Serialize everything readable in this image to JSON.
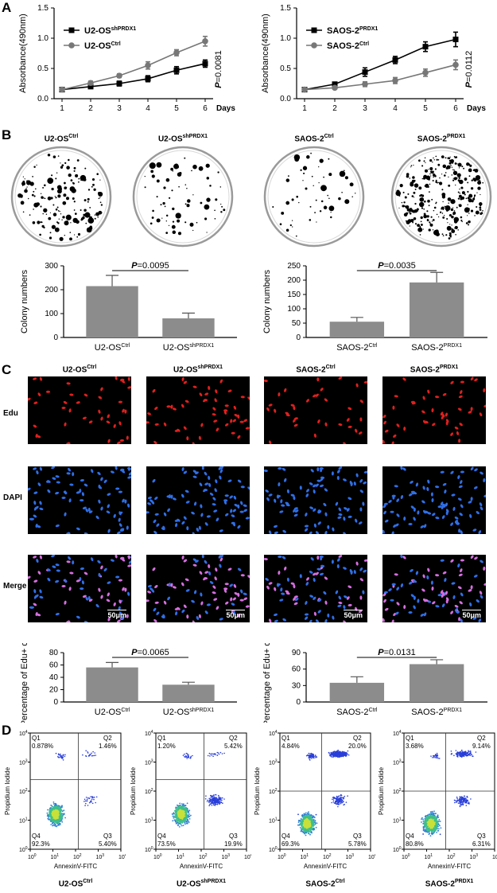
{
  "panels": {
    "a": "A",
    "b": "B",
    "c": "C",
    "d": "D"
  },
  "chart_data": [
    {
      "id": "growth-u2os",
      "type": "line",
      "ylabel": "Absorbance(490nm)",
      "xlabel": "Days",
      "x": [
        1,
        2,
        3,
        4,
        5,
        6
      ],
      "ylim": [
        0,
        1.5
      ],
      "yticks": [
        "0.0",
        "0.5",
        "1.0",
        "1.5"
      ],
      "series": [
        {
          "name": "U2-OS",
          "sup": "shPRDX1",
          "color": "#000000",
          "marker": "square",
          "values": [
            0.15,
            0.2,
            0.25,
            0.33,
            0.47,
            0.58
          ],
          "err": [
            0.02,
            0.03,
            0.04,
            0.05,
            0.06,
            0.06
          ]
        },
        {
          "name": "U2-OS",
          "sup": "Ctrl",
          "color": "#777777",
          "marker": "circle",
          "values": [
            0.15,
            0.26,
            0.38,
            0.55,
            0.76,
            0.95
          ],
          "err": [
            0.02,
            0.03,
            0.03,
            0.06,
            0.05,
            0.08
          ]
        }
      ],
      "pvalue": "=0.0081"
    },
    {
      "id": "growth-saos",
      "type": "line",
      "ylabel": "Absorbance(490nm)",
      "xlabel": "Days",
      "x": [
        1,
        2,
        3,
        4,
        5,
        6
      ],
      "ylim": [
        0,
        1.5
      ],
      "yticks": [
        "0.0",
        "0.5",
        "1.0",
        "1.5"
      ],
      "series": [
        {
          "name": "SAOS-2",
          "sup": "PRDX1",
          "color": "#000000",
          "marker": "square",
          "values": [
            0.15,
            0.24,
            0.44,
            0.64,
            0.86,
            0.98
          ],
          "err": [
            0.02,
            0.03,
            0.07,
            0.06,
            0.08,
            0.12
          ]
        },
        {
          "name": "SAOS-2",
          "sup": "Ctrl",
          "color": "#777777",
          "marker": "circle",
          "values": [
            0.15,
            0.18,
            0.24,
            0.3,
            0.43,
            0.56
          ],
          "err": [
            0.02,
            0.02,
            0.04,
            0.05,
            0.06,
            0.08
          ]
        }
      ],
      "pvalue": "=0.0112"
    },
    {
      "id": "colony-u2os",
      "type": "bar",
      "ylabel": "Colony numbers",
      "categories": [
        {
          "name": "U2-OS",
          "sup": "Ctrl"
        },
        {
          "name": "U2-OS",
          "sup": "shPRDX1"
        }
      ],
      "values": [
        215,
        80
      ],
      "err": [
        45,
        22
      ],
      "ylim": [
        0,
        300
      ],
      "yticks": [
        "0",
        "100",
        "200",
        "300"
      ],
      "pvalue": "=0.0095"
    },
    {
      "id": "colony-saos",
      "type": "bar",
      "ylabel": "Colony numbers",
      "categories": [
        {
          "name": "SAOS-2",
          "sup": "Ctrl"
        },
        {
          "name": "SAOS-2",
          "sup": "PRDX1"
        }
      ],
      "values": [
        55,
        192
      ],
      "err": [
        15,
        35
      ],
      "ylim": [
        0,
        250
      ],
      "yticks": [
        "0",
        "50",
        "100",
        "150",
        "200",
        "250"
      ],
      "pvalue": "=0.0035"
    },
    {
      "id": "edu-u2os",
      "type": "bar",
      "ylabel": "Percentage of Edu+ cells",
      "categories": [
        {
          "name": "U2-OS",
          "sup": "Ctrl"
        },
        {
          "name": "U2-OS",
          "sup": "shPRDX1"
        }
      ],
      "values": [
        56,
        28
      ],
      "err": [
        8,
        4
      ],
      "ylim": [
        0,
        80
      ],
      "yticks": [
        "0",
        "20",
        "40",
        "60",
        "80"
      ],
      "pvalue": "=0.0065"
    },
    {
      "id": "edu-saos",
      "type": "bar",
      "ylabel": "Percentage of Edu+ cells",
      "categories": [
        {
          "name": "SAOS-2",
          "sup": "Ctrl"
        },
        {
          "name": "SAOS-2",
          "sup": "PRDX1"
        }
      ],
      "values": [
        35,
        69
      ],
      "err": [
        11,
        8
      ],
      "ylim": [
        0,
        90
      ],
      "yticks": [
        "0",
        "30",
        "60",
        "90"
      ],
      "pvalue": "=0.0131"
    }
  ],
  "colony_labels": [
    {
      "name": "U2-OS",
      "sup": "Ctrl",
      "density": 170,
      "bigspots": false
    },
    {
      "name": "U2-OS",
      "sup": "shPRDX1",
      "density": 70,
      "bigspots": false
    },
    {
      "name": "SAOS-2",
      "sup": "Ctrl",
      "density": 55,
      "bigspots": false
    },
    {
      "name": "SAOS-2",
      "sup": "PRDX1",
      "density": 320,
      "bigspots": true
    }
  ],
  "microscopy": {
    "columns": [
      {
        "name": "U2-OS",
        "sup": "Ctrl"
      },
      {
        "name": "U2-OS",
        "sup": "shPRDX1"
      },
      {
        "name": "SAOS-2",
        "sup": "Ctrl"
      },
      {
        "name": "SAOS-2",
        "sup": "PRDX1"
      }
    ],
    "rows": [
      "Edu",
      "DAPI",
      "Merge"
    ],
    "scale": "50μm",
    "colors": {
      "edu": "#e0201e",
      "dapi": "#2f6fe8",
      "merge": "#d66ee0"
    }
  },
  "facs": {
    "xlabel": "AnnexinV-FITC",
    "ylabel": "Propidium Iodide",
    "ticks": [
      "10",
      "10",
      "10",
      "10",
      "10"
    ],
    "exps": [
      "0",
      "1",
      "2",
      "3",
      "4"
    ],
    "plots": [
      {
        "name": "U2-OS",
        "sup": "Ctrl",
        "q1": "0.878%",
        "q2": "1.46%",
        "q3": "5.40%",
        "q4": "92.3%"
      },
      {
        "name": "U2-OS",
        "sup": "shPRDX1",
        "q1": "1.20%",
        "q2": "5.42%",
        "q3": "19.9%",
        "q4": "73.5%"
      },
      {
        "name": "SAOS-2",
        "sup": "Ctrl",
        "q1": "4.84%",
        "q2": "20.0%",
        "q3": "5.78%",
        "q4": "69.3%"
      },
      {
        "name": "SAOS-2",
        "sup": "PRDX1",
        "q1": "3.68%",
        "q2": "9.14%",
        "q3": "6.31%",
        "q4": "80.8%"
      }
    ],
    "quad_labels": [
      "Q1",
      "Q2",
      "Q3",
      "Q4"
    ]
  }
}
